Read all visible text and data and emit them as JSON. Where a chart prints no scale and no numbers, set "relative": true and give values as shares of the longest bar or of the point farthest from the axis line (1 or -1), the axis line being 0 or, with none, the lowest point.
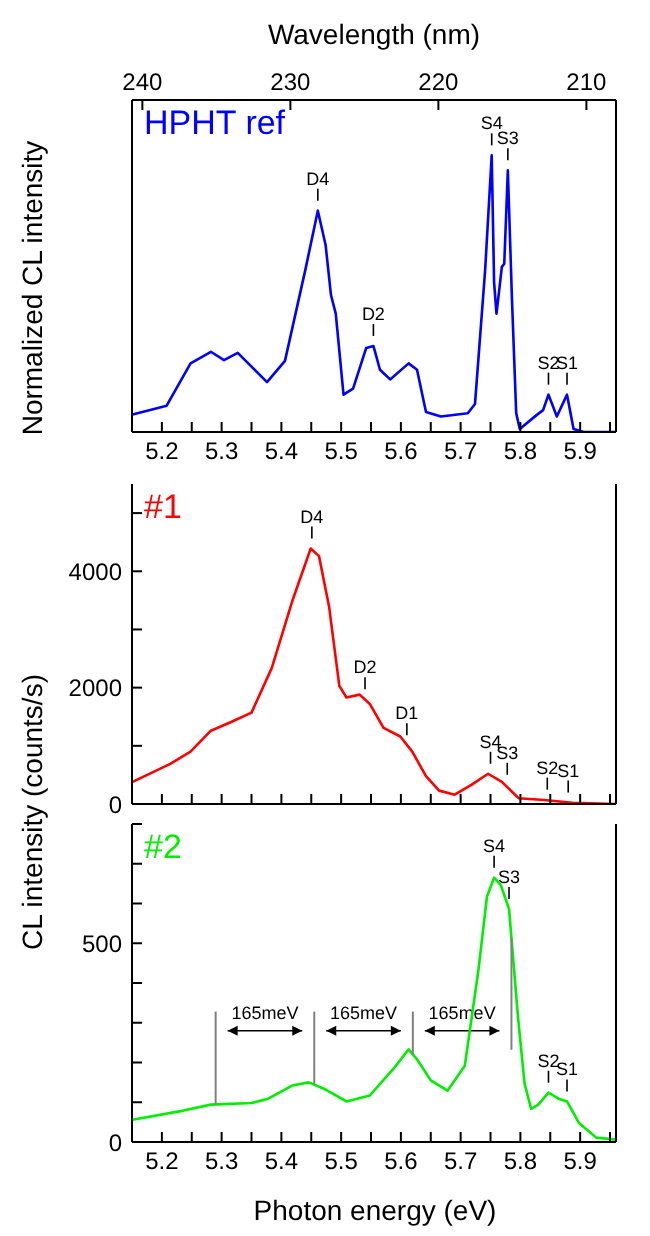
{
  "chart_data": [
    {
      "type": "line",
      "relative": true,
      "x2label": "Wavelength (nm)",
      "ylabel": "Normalized CL intensity",
      "xlim": [
        5.15,
        5.96
      ],
      "tick_labels": "x",
      "xticks": [
        {
          "value": 5.15,
          "label": null
        },
        5.2,
        {
          "value": 5.25,
          "label": null
        },
        5.3,
        {
          "value": 5.35,
          "label": null
        },
        5.4,
        {
          "value": 5.45,
          "label": null
        },
        5.5,
        {
          "value": 5.55,
          "label": null
        },
        5.6,
        {
          "value": 5.65,
          "label": null
        },
        5.7,
        {
          "value": 5.75,
          "label": null
        },
        5.8,
        {
          "value": 5.85,
          "label": null
        },
        5.9,
        {
          "value": 5.95,
          "label": null
        }
      ],
      "x2lim": [
        240.7,
        208.0
      ],
      "x2ticks": [
        240,
        230,
        220,
        210
      ],
      "series": [
        {
          "name": "HPHT ref",
          "color": "#0000ff",
          "x": [
            5.151,
            5.208,
            5.248,
            5.282,
            5.304,
            5.327,
            5.35,
            5.376,
            5.406,
            5.44,
            5.461,
            5.474,
            5.483,
            5.491,
            5.504,
            5.52,
            5.542,
            5.554,
            5.565,
            5.582,
            5.613,
            5.627,
            5.642,
            5.667,
            5.712,
            5.724,
            5.741,
            5.752,
            5.756,
            5.76,
            5.769,
            5.773,
            5.779,
            5.786,
            5.793,
            5.799,
            5.827,
            5.838,
            5.847,
            5.861,
            5.878,
            5.889,
            5.906,
            5.96
          ],
          "values": [
            0.063,
            0.095,
            0.248,
            0.29,
            0.26,
            0.286,
            0.236,
            0.18,
            0.257,
            0.585,
            0.8,
            0.676,
            0.495,
            0.428,
            0.135,
            0.157,
            0.304,
            0.311,
            0.225,
            0.19,
            0.248,
            0.225,
            0.072,
            0.056,
            0.068,
            0.101,
            0.585,
            1,
            0.54,
            0.428,
            0.597,
            0.608,
            0.946,
            0.473,
            0.068,
            0.011,
            0.061,
            0.079,
            0.135,
            0.056,
            0.135,
            0.011,
            0,
            0
          ]
        }
      ],
      "annotations": [
        {
          "text": "D4",
          "x": 5.461,
          "y": 0.8
        },
        {
          "text": "D2",
          "x": 5.554,
          "y": 0.311
        },
        {
          "text": "S4",
          "x": 5.752,
          "y": 1
        },
        {
          "text": "S3",
          "x": 5.779,
          "y": 0.946
        },
        {
          "text": "S2",
          "x": 5.847,
          "y": 0.135
        },
        {
          "text": "S1",
          "x": 5.878,
          "y": 0.135
        }
      ]
    },
    {
      "type": "line",
      "ylabel": "CL intensity (counts/s)",
      "xlim": [
        5.15,
        5.96
      ],
      "ylim": [
        0,
        5500
      ],
      "tick_labels": "y",
      "xticks": [
        {
          "value": 5.15,
          "label": null
        },
        {
          "value": 5.2,
          "label": null
        },
        {
          "value": 5.25,
          "label": null
        },
        {
          "value": 5.3,
          "label": null
        },
        {
          "value": 5.35,
          "label": null
        },
        {
          "value": 5.4,
          "label": null
        },
        {
          "value": 5.45,
          "label": null
        },
        {
          "value": 5.5,
          "label": null
        },
        {
          "value": 5.55,
          "label": null
        },
        {
          "value": 5.6,
          "label": null
        },
        {
          "value": 5.65,
          "label": null
        },
        {
          "value": 5.7,
          "label": null
        },
        {
          "value": 5.75,
          "label": null
        },
        {
          "value": 5.8,
          "label": null
        },
        {
          "value": 5.85,
          "label": null
        },
        {
          "value": 5.9,
          "label": null
        },
        {
          "value": 5.95,
          "label": null
        }
      ],
      "yticks": [
        0,
        {
          "value": 1000,
          "label": null
        },
        2000,
        {
          "value": 3000,
          "label": null
        },
        4000,
        {
          "value": 5000,
          "label": null
        }
      ],
      "series": [
        {
          "name": "#1",
          "color": "#ff0000",
          "x": [
            5.151,
            5.214,
            5.248,
            5.282,
            5.316,
            5.35,
            5.384,
            5.418,
            5.449,
            5.463,
            5.48,
            5.497,
            5.509,
            5.531,
            5.548,
            5.571,
            5.599,
            5.619,
            5.642,
            5.664,
            5.69,
            5.718,
            5.746,
            5.769,
            5.797,
            5.84,
            5.887,
            5.96
          ],
          "values": [
            380,
            690,
            900,
            1260,
            1410,
            1570,
            2340,
            3480,
            4390,
            4260,
            3380,
            2030,
            1830,
            1880,
            1720,
            1310,
            1160,
            900,
            480,
            230,
            160,
            330,
            520,
            380,
            100,
            70,
            20,
            0
          ]
        }
      ],
      "annotations": [
        {
          "text": "D4",
          "x": 5.451,
          "y": 4390
        },
        {
          "text": "D2",
          "x": 5.54,
          "y": 1800
        },
        {
          "text": "D1",
          "x": 5.61,
          "y": 1010
        },
        {
          "text": "S4",
          "x": 5.75,
          "y": 520
        },
        {
          "text": "S3",
          "x": 5.778,
          "y": 330
        },
        {
          "text": "S2",
          "x": 5.845,
          "y": 75
        },
        {
          "text": "S1",
          "x": 5.88,
          "y": 25
        }
      ]
    },
    {
      "type": "line",
      "xlabel": "Photon energy (eV)",
      "xlim": [
        5.15,
        5.96
      ],
      "ylim": [
        0,
        800
      ],
      "xticks": [
        {
          "value": 5.15,
          "label": null
        },
        5.2,
        {
          "value": 5.25,
          "label": null
        },
        5.3,
        {
          "value": 5.35,
          "label": null
        },
        5.4,
        {
          "value": 5.45,
          "label": null
        },
        5.5,
        {
          "value": 5.55,
          "label": null
        },
        5.6,
        {
          "value": 5.65,
          "label": null
        },
        5.7,
        {
          "value": 5.75,
          "label": null
        },
        5.8,
        {
          "value": 5.85,
          "label": null
        },
        5.9,
        {
          "value": 5.95,
          "label": null
        }
      ],
      "yticks": [
        0,
        {
          "value": 100,
          "label": null
        },
        {
          "value": 200,
          "label": null
        },
        {
          "value": 300,
          "label": null
        },
        {
          "value": 400,
          "label": null
        },
        500,
        {
          "value": 600,
          "label": null
        },
        {
          "value": 700,
          "label": null
        },
        {
          "value": 800,
          "label": null
        }
      ],
      "series": [
        {
          "name": "#2",
          "color": "#00ee00",
          "x": [
            5.151,
            5.236,
            5.282,
            5.35,
            5.378,
            5.418,
            5.446,
            5.474,
            5.509,
            5.548,
            5.588,
            5.613,
            5.627,
            5.65,
            5.678,
            5.707,
            5.73,
            5.744,
            5.756,
            5.767,
            5.781,
            5.796,
            5.807,
            5.818,
            5.83,
            5.847,
            5.864,
            5.878,
            5.898,
            5.927,
            5.96
          ],
          "values": [
            56,
            79,
            94,
            98,
            109,
            142,
            150,
            132,
            102,
            117,
            185,
            233,
            208,
            155,
            129,
            192,
            435,
            617,
            665,
            647,
            586,
            314,
            147,
            83,
            94,
            124,
            109,
            102,
            48,
            11,
            6
          ]
        }
      ],
      "ref_lines": [
        {
          "axis": "x",
          "value": 5.29,
          "color": "#808080"
        },
        {
          "axis": "x",
          "value": 5.455,
          "color": "#808080"
        },
        {
          "axis": "x",
          "value": 5.62,
          "color": "#808080"
        },
        {
          "axis": "x",
          "value": 5.785,
          "color": "#808080"
        }
      ],
      "annotations": [
        "165meV",
        "165meV",
        "165meV",
        {
          "text": "S4",
          "x": 5.756,
          "y": 665
        },
        {
          "text": "S3",
          "x": 5.781,
          "y": 586
        },
        {
          "text": "S2",
          "x": 5.847,
          "y": 124
        },
        {
          "text": "S1",
          "x": 5.878,
          "y": 102
        }
      ]
    }
  ]
}
